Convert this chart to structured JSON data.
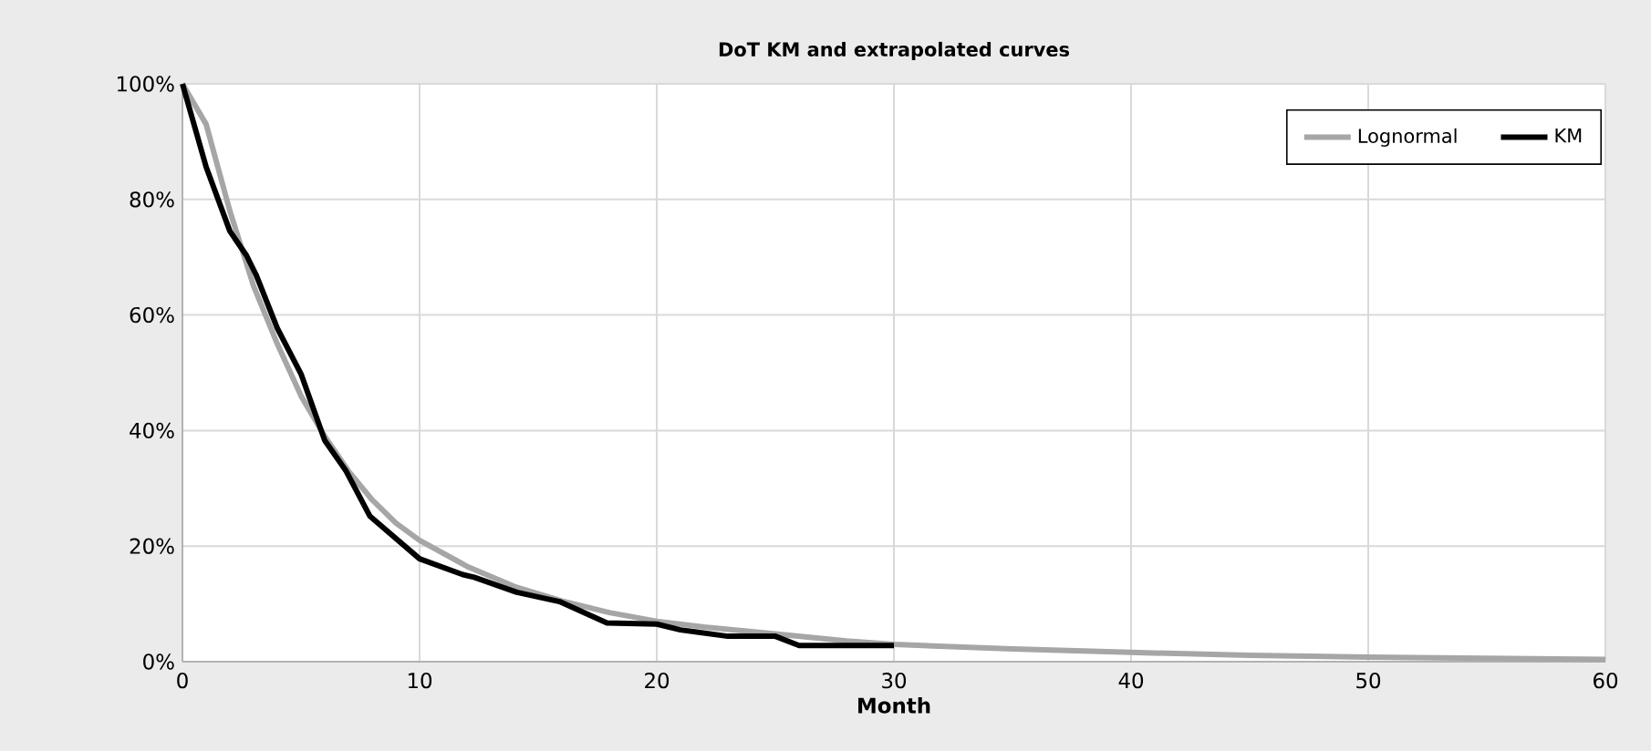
{
  "chart_data": {
    "type": "line",
    "title": "DoT KM and extrapolated curves",
    "xlabel": "Month",
    "xlim": [
      0,
      60
    ],
    "xticks": [
      0,
      10,
      20,
      30,
      40,
      50,
      60
    ],
    "ylim": [
      0,
      100
    ],
    "yticks": [
      {
        "value": 0,
        "label": "0%"
      },
      {
        "value": 20,
        "label": "20%"
      },
      {
        "value": 40,
        "label": "40%"
      },
      {
        "value": 60,
        "label": "60%"
      },
      {
        "value": 80,
        "label": "80%"
      },
      {
        "value": 100,
        "label": "100%"
      }
    ],
    "grid": true,
    "legend": "top right",
    "series": [
      {
        "name": "Lognormal",
        "color": "#a6a6a6",
        "x": [
          0,
          1,
          2,
          3,
          4,
          5,
          6,
          7,
          8,
          9,
          10,
          12,
          14,
          16,
          18,
          20,
          22,
          25,
          28,
          30,
          35,
          40,
          45,
          50,
          55,
          60
        ],
        "values": [
          100,
          93,
          78,
          65,
          55,
          46,
          39,
          33,
          28,
          24,
          21,
          16.5,
          13,
          10.5,
          8.5,
          7,
          6,
          4.8,
          3.6,
          3,
          2.2,
          1.6,
          1.1,
          0.8,
          0.6,
          0.4
        ]
      },
      {
        "name": "KM",
        "color": "#000000",
        "x": [
          0,
          1,
          2,
          2.7,
          3.1,
          4,
          5,
          6,
          6.9,
          7.9,
          10,
          11.8,
          12.3,
          14.1,
          15.9,
          17.9,
          20,
          21,
          23,
          25,
          26,
          30
        ],
        "values": [
          100,
          85.6,
          74.5,
          70.3,
          67,
          57.7,
          49.8,
          38.3,
          33,
          25.2,
          17.8,
          15.1,
          14.6,
          12,
          10.4,
          6.7,
          6.5,
          5.5,
          4.4,
          4.4,
          2.8,
          2.8
        ]
      }
    ]
  }
}
